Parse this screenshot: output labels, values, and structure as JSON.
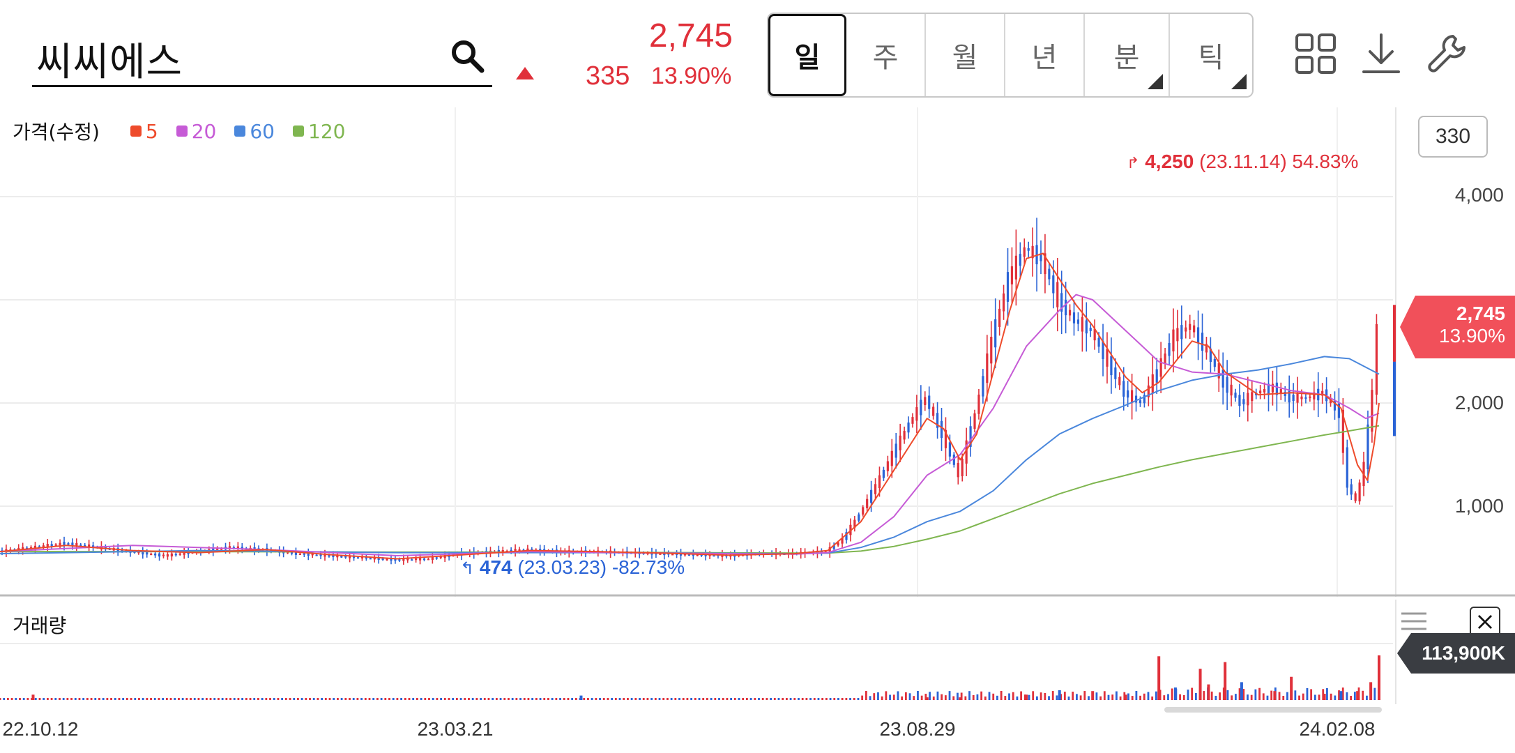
{
  "search": {
    "value": "씨씨에스"
  },
  "quote": {
    "price": "2,745",
    "change": "335",
    "change_pct": "13.90%",
    "up_color": "#e0303a"
  },
  "periods": [
    {
      "label": "일",
      "active": true,
      "has_menu": false
    },
    {
      "label": "주",
      "active": false,
      "has_menu": false
    },
    {
      "label": "월",
      "active": false,
      "has_menu": false
    },
    {
      "label": "년",
      "active": false,
      "has_menu": false
    },
    {
      "label": "분",
      "active": false,
      "has_menu": true
    },
    {
      "label": "틱",
      "active": false,
      "has_menu": true
    }
  ],
  "tools": {
    "layout": "grid-icon",
    "download": "download-icon",
    "settings": "wrench-icon"
  },
  "legend": {
    "title": "가격(수정)",
    "items": [
      {
        "label": "5",
        "color": "#ee4b2b"
      },
      {
        "label": "20",
        "color": "#c65bd6"
      },
      {
        "label": "60",
        "color": "#4a87dc"
      },
      {
        "label": "120",
        "color": "#7fb650"
      }
    ]
  },
  "candle_count": "330",
  "price_tag": {
    "value": "2,745",
    "pct": "13.90%"
  },
  "volume": {
    "label": "거래량",
    "last": "113,900K"
  },
  "chart_data": {
    "type": "candlestick",
    "title": "",
    "y_ticks": [
      "4,000",
      "2,000",
      "1,000"
    ],
    "x_labels": [
      "22.10.12",
      "23.03.21",
      "23.08.29",
      "24.02.08"
    ],
    "y_ticks_values": [
      4000,
      3000,
      2000,
      1000
    ],
    "ylim": [
      0,
      4600
    ],
    "high": {
      "label": "4,250",
      "date": "(23.11.14)",
      "pct": "54.83%"
    },
    "low": {
      "label": "474",
      "date": "(23.03.23)",
      "pct": "-82.73%"
    },
    "close_series": [
      [
        0,
        560
      ],
      [
        20,
        600
      ],
      [
        40,
        640
      ],
      [
        60,
        600
      ],
      [
        80,
        560
      ],
      [
        100,
        520
      ],
      [
        120,
        560
      ],
      [
        140,
        600
      ],
      [
        160,
        580
      ],
      [
        180,
        540
      ],
      [
        200,
        520
      ],
      [
        220,
        500
      ],
      [
        240,
        480
      ],
      [
        260,
        490
      ],
      [
        280,
        540
      ],
      [
        300,
        560
      ],
      [
        320,
        580
      ],
      [
        340,
        560
      ],
      [
        360,
        560
      ],
      [
        380,
        550
      ],
      [
        400,
        540
      ],
      [
        420,
        530
      ],
      [
        440,
        520
      ],
      [
        460,
        540
      ],
      [
        480,
        540
      ],
      [
        500,
        560
      ],
      [
        510,
        680
      ],
      [
        520,
        920
      ],
      [
        530,
        1200
      ],
      [
        540,
        1500
      ],
      [
        550,
        1800
      ],
      [
        560,
        2050
      ],
      [
        570,
        1700
      ],
      [
        580,
        1300
      ],
      [
        590,
        1900
      ],
      [
        600,
        2600
      ],
      [
        610,
        3200
      ],
      [
        620,
        3500
      ],
      [
        630,
        3400
      ],
      [
        640,
        3000
      ],
      [
        650,
        2800
      ],
      [
        660,
        2700
      ],
      [
        670,
        2400
      ],
      [
        680,
        2100
      ],
      [
        690,
        2000
      ],
      [
        700,
        2300
      ],
      [
        710,
        2650
      ],
      [
        720,
        2750
      ],
      [
        730,
        2500
      ],
      [
        740,
        2200
      ],
      [
        750,
        2000
      ],
      [
        760,
        2100
      ],
      [
        770,
        2150
      ],
      [
        780,
        2050
      ],
      [
        790,
        2050
      ],
      [
        800,
        2100
      ],
      [
        810,
        1900
      ],
      [
        815,
        1200
      ],
      [
        820,
        1050
      ],
      [
        825,
        1400
      ],
      [
        830,
        2100
      ],
      [
        833,
        2745
      ]
    ],
    "ma5": [
      [
        0,
        560
      ],
      [
        40,
        620
      ],
      [
        80,
        570
      ],
      [
        120,
        550
      ],
      [
        160,
        580
      ],
      [
        200,
        530
      ],
      [
        240,
        490
      ],
      [
        280,
        530
      ],
      [
        320,
        570
      ],
      [
        360,
        560
      ],
      [
        400,
        545
      ],
      [
        440,
        525
      ],
      [
        480,
        540
      ],
      [
        500,
        570
      ],
      [
        520,
        850
      ],
      [
        540,
        1350
      ],
      [
        560,
        1850
      ],
      [
        570,
        1750
      ],
      [
        580,
        1450
      ],
      [
        590,
        1700
      ],
      [
        600,
        2300
      ],
      [
        610,
        2900
      ],
      [
        620,
        3400
      ],
      [
        630,
        3450
      ],
      [
        640,
        3200
      ],
      [
        650,
        2950
      ],
      [
        660,
        2750
      ],
      [
        680,
        2250
      ],
      [
        690,
        2100
      ],
      [
        700,
        2200
      ],
      [
        720,
        2600
      ],
      [
        730,
        2550
      ],
      [
        740,
        2300
      ],
      [
        760,
        2080
      ],
      [
        780,
        2100
      ],
      [
        800,
        2080
      ],
      [
        810,
        1950
      ],
      [
        820,
        1400
      ],
      [
        826,
        1250
      ],
      [
        830,
        1600
      ],
      [
        833,
        2000
      ]
    ],
    "ma20": [
      [
        0,
        560
      ],
      [
        80,
        620
      ],
      [
        160,
        580
      ],
      [
        240,
        520
      ],
      [
        320,
        560
      ],
      [
        400,
        545
      ],
      [
        480,
        535
      ],
      [
        500,
        550
      ],
      [
        520,
        650
      ],
      [
        540,
        900
      ],
      [
        560,
        1300
      ],
      [
        580,
        1500
      ],
      [
        600,
        1950
      ],
      [
        620,
        2550
      ],
      [
        640,
        2900
      ],
      [
        650,
        3050
      ],
      [
        660,
        3000
      ],
      [
        680,
        2700
      ],
      [
        700,
        2400
      ],
      [
        720,
        2300
      ],
      [
        740,
        2280
      ],
      [
        760,
        2200
      ],
      [
        780,
        2120
      ],
      [
        800,
        2080
      ],
      [
        815,
        1950
      ],
      [
        825,
        1850
      ],
      [
        833,
        1900
      ]
    ],
    "ma60": [
      [
        0,
        540
      ],
      [
        120,
        570
      ],
      [
        240,
        550
      ],
      [
        360,
        550
      ],
      [
        480,
        540
      ],
      [
        500,
        545
      ],
      [
        520,
        600
      ],
      [
        540,
        700
      ],
      [
        560,
        850
      ],
      [
        580,
        950
      ],
      [
        600,
        1150
      ],
      [
        620,
        1450
      ],
      [
        640,
        1700
      ],
      [
        660,
        1850
      ],
      [
        680,
        1980
      ],
      [
        700,
        2120
      ],
      [
        720,
        2220
      ],
      [
        740,
        2280
      ],
      [
        760,
        2320
      ],
      [
        780,
        2380
      ],
      [
        800,
        2450
      ],
      [
        815,
        2430
      ],
      [
        833,
        2280
      ]
    ],
    "ma120": [
      [
        0,
        560
      ],
      [
        120,
        560
      ],
      [
        240,
        555
      ],
      [
        360,
        555
      ],
      [
        480,
        545
      ],
      [
        500,
        545
      ],
      [
        520,
        565
      ],
      [
        540,
        610
      ],
      [
        560,
        680
      ],
      [
        580,
        760
      ],
      [
        600,
        880
      ],
      [
        620,
        1000
      ],
      [
        640,
        1120
      ],
      [
        660,
        1220
      ],
      [
        680,
        1300
      ],
      [
        700,
        1380
      ],
      [
        720,
        1450
      ],
      [
        740,
        1510
      ],
      [
        760,
        1570
      ],
      [
        780,
        1630
      ],
      [
        800,
        1690
      ],
      [
        815,
        1730
      ],
      [
        833,
        1780
      ]
    ],
    "volume_spikes": [
      [
        20,
        0.12
      ],
      [
        351,
        0.1
      ],
      [
        560,
        0.06
      ],
      [
        580,
        0.06
      ],
      [
        620,
        0.12
      ],
      [
        640,
        0.22
      ],
      [
        660,
        0.2
      ],
      [
        680,
        0.12
      ],
      [
        700,
        0.98
      ],
      [
        710,
        0.28
      ],
      [
        725,
        0.7
      ],
      [
        730,
        0.35
      ],
      [
        740,
        0.85
      ],
      [
        750,
        0.4
      ],
      [
        770,
        0.2
      ],
      [
        780,
        0.52
      ],
      [
        800,
        0.14
      ],
      [
        810,
        0.2
      ],
      [
        820,
        0.2
      ],
      [
        828,
        0.4
      ],
      [
        833,
        1.0
      ]
    ]
  }
}
